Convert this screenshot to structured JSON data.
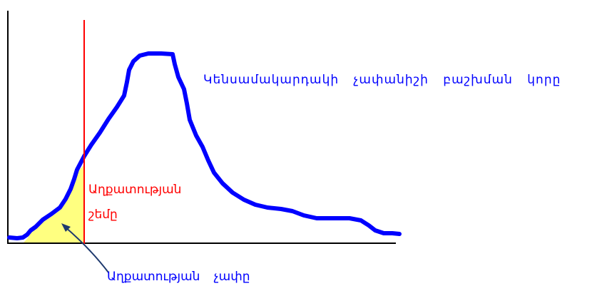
{
  "diagram": {
    "curve_label": "Կենսամակարդակի չափանիշի բաշխման կորը",
    "threshold_label_line1": "Աղքատության",
    "threshold_label_line2": "շեմը",
    "area_label": "Աղքատության չափը",
    "colors": {
      "axes": "#000000",
      "curve": "#0000ff",
      "threshold_line": "#ff0000",
      "shaded_area": "#ffff80",
      "arrow": "#1f3a6e"
    }
  }
}
